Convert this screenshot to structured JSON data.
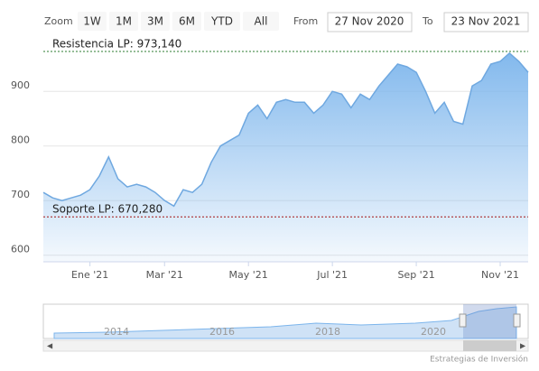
{
  "chart_data": {
    "type": "area",
    "color": "#6fa8e0",
    "zoom_label": "Zoom",
    "range_buttons": [
      "1W",
      "1M",
      "3M",
      "6M",
      "YTD",
      "All"
    ],
    "from_label": "From",
    "from_date": "27 Nov 2020",
    "to_label": "To",
    "to_date": "23 Nov 2021",
    "categories": [
      null,
      null,
      null,
      null,
      null,
      "Ene '21",
      null,
      null,
      null,
      null,
      null,
      null,
      null,
      "Mar '21",
      null,
      null,
      null,
      null,
      null,
      null,
      null,
      null,
      "May '21",
      null,
      null,
      null,
      null,
      null,
      null,
      null,
      null,
      "Jul '21",
      null,
      null,
      null,
      null,
      null,
      null,
      null,
      null,
      "Sep '21",
      null,
      null,
      null,
      null,
      null,
      null,
      null,
      null,
      "Nov '21",
      null,
      null,
      null
    ],
    "values": [
      715,
      705,
      700,
      705,
      710,
      720,
      745,
      780,
      740,
      725,
      730,
      725,
      715,
      700,
      690,
      720,
      715,
      730,
      770,
      800,
      810,
      820,
      860,
      875,
      850,
      880,
      885,
      880,
      880,
      860,
      875,
      900,
      895,
      870,
      895,
      885,
      910,
      930,
      950,
      945,
      935,
      900,
      860,
      880,
      845,
      840,
      910,
      920,
      950,
      955,
      970,
      955,
      935
    ],
    "ylim": [
      588,
      988
    ],
    "yticks": [
      600,
      700,
      800,
      900
    ],
    "grid": true,
    "plot_lines": [
      {
        "value": 973.14,
        "label": "Resistencia LP: 973,140",
        "color": "#2e7d32"
      },
      {
        "value": 670.28,
        "label": "Soporte LP: 670,280",
        "color": "#a31515"
      }
    ],
    "navigator_labels": [
      "2014",
      "2016",
      "2018",
      "2020"
    ],
    "credits": "Estrategias de Inversión"
  }
}
